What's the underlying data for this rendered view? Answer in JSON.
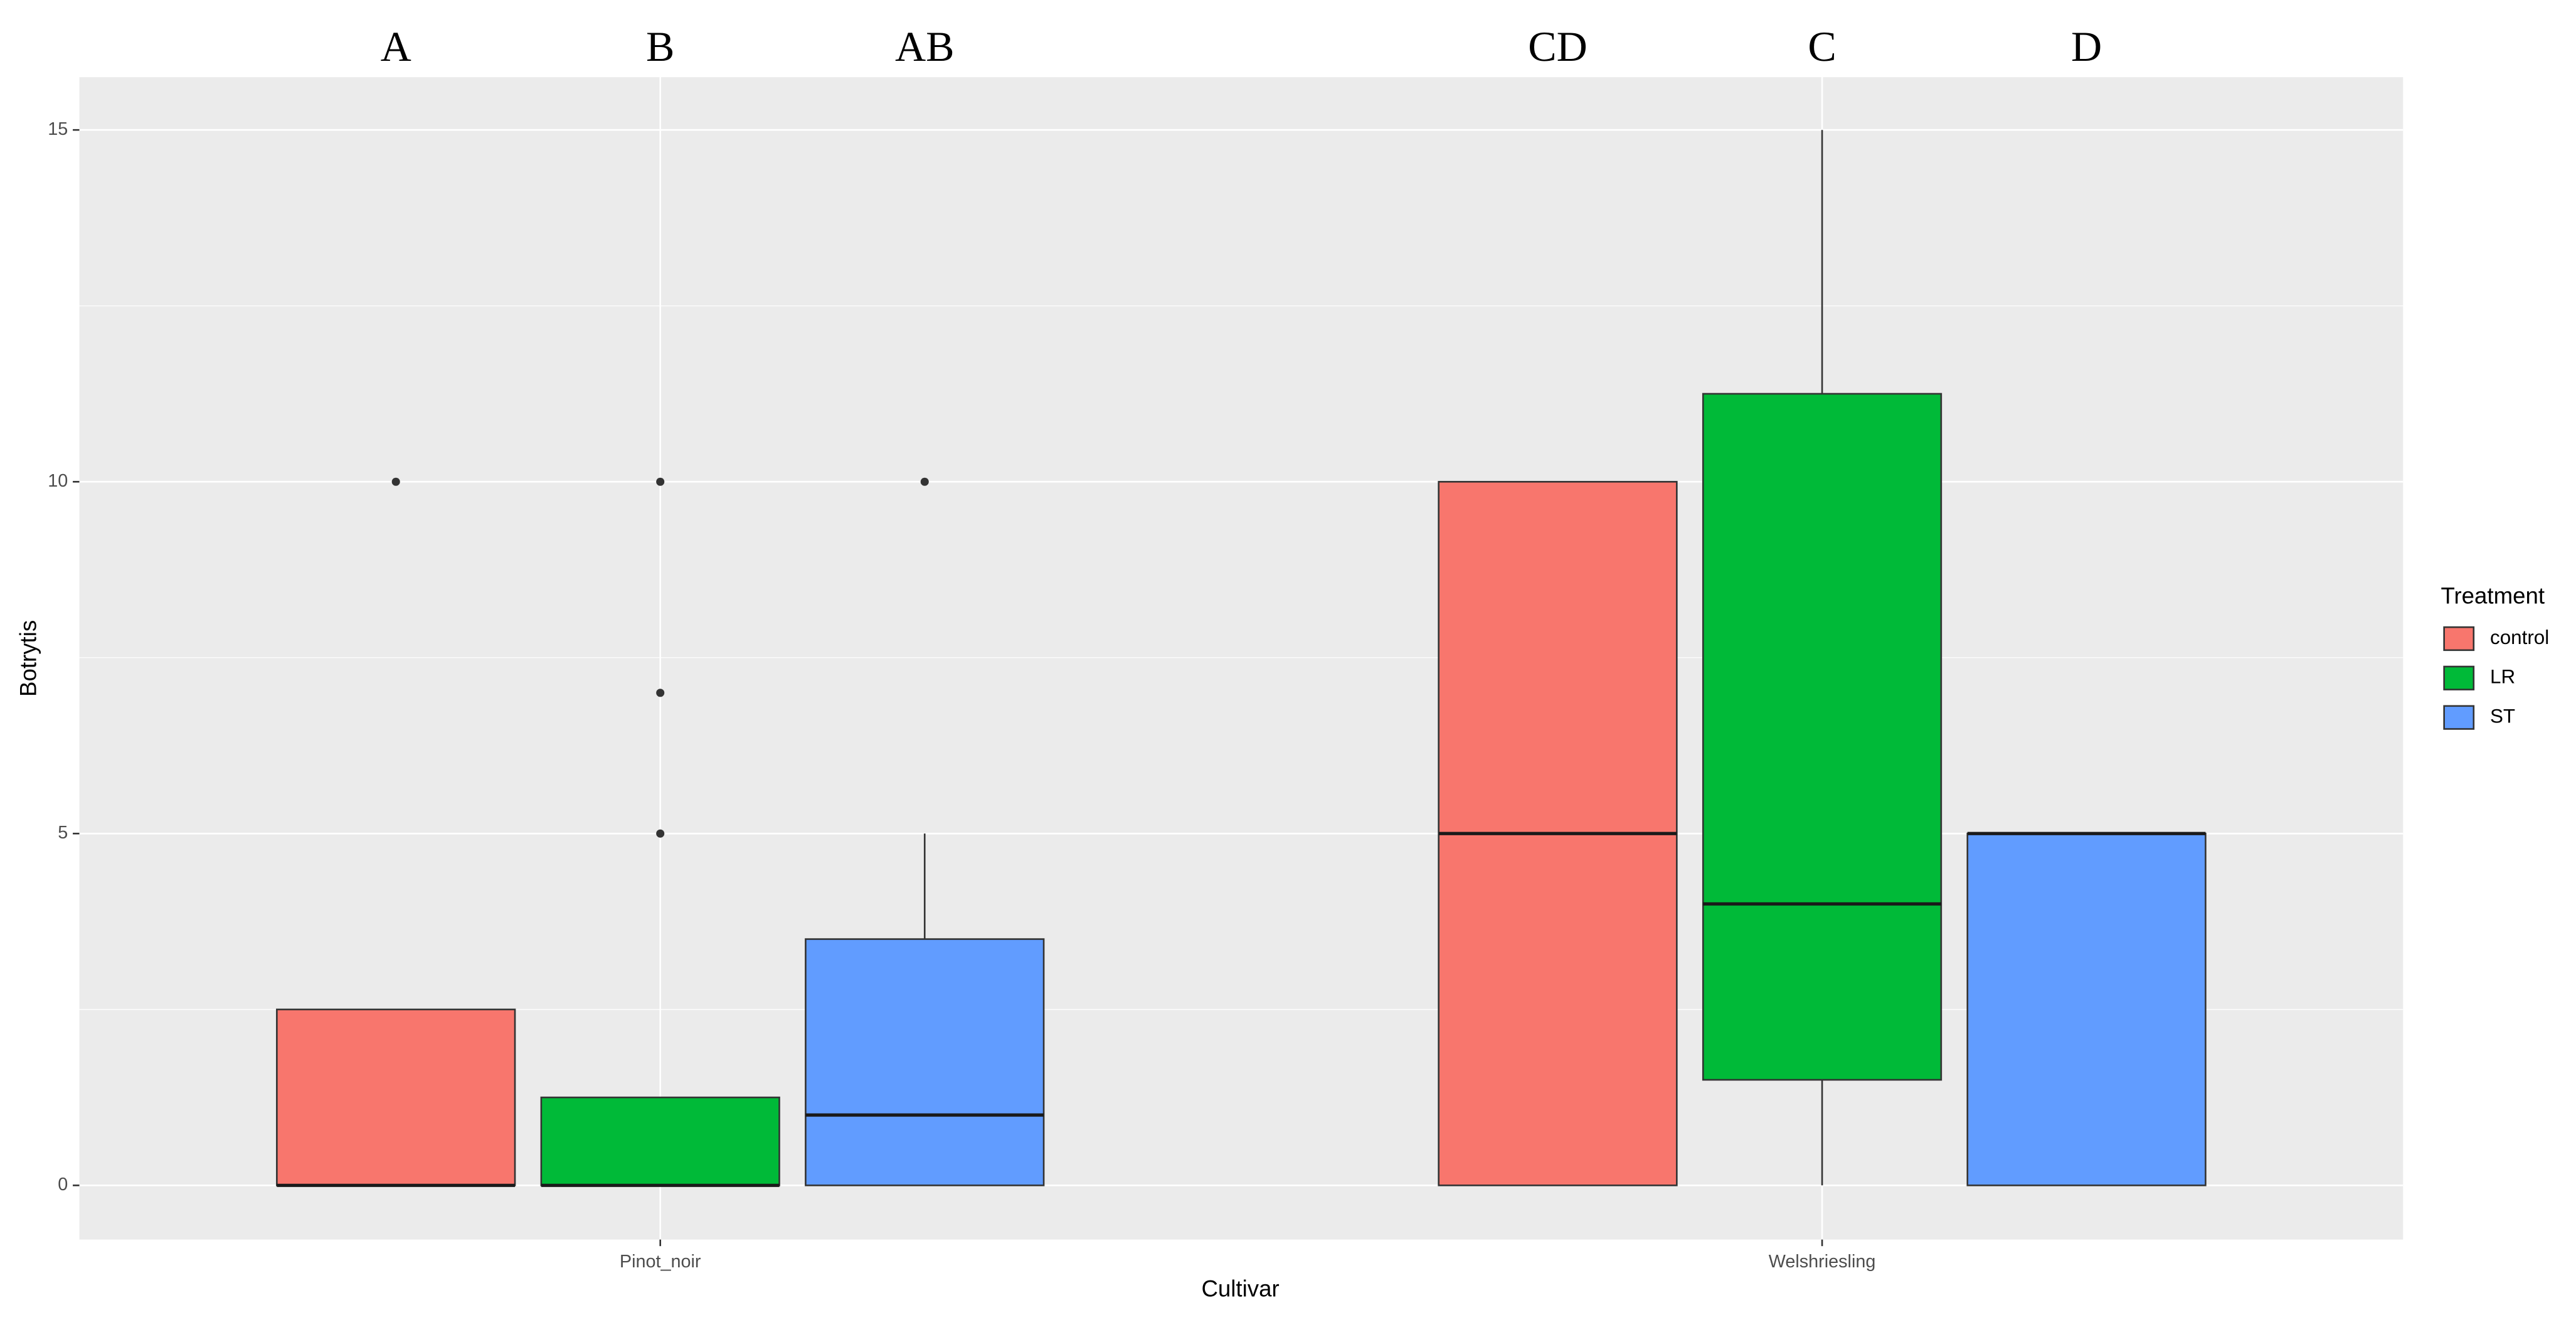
{
  "chart_data": {
    "type": "box",
    "x_label": "Cultivar",
    "y_label": "Botrytis",
    "categories": [
      "Pinot_noir",
      "Welshriesling"
    ],
    "ylim": [
      -0.77,
      15.75
    ],
    "yticks": [
      0,
      5,
      10,
      15
    ],
    "yminor": [
      2.5,
      7.5,
      12.5
    ],
    "grid": true,
    "legend_title": "Treatment",
    "legend": "right",
    "series": [
      {
        "name": "control",
        "color": "#f8766d",
        "letters": [
          "A",
          "CD"
        ],
        "values": [
          {
            "min": 0,
            "q1": 0,
            "median": 0,
            "q3": 2.5,
            "max": 2.5,
            "outliers": [
              10
            ]
          },
          {
            "min": 0,
            "q1": 0,
            "median": 5,
            "q3": 10,
            "max": 10,
            "outliers": []
          }
        ]
      },
      {
        "name": "LR",
        "color": "#00ba38",
        "letters": [
          "B",
          "C"
        ],
        "values": [
          {
            "min": 0,
            "q1": 0,
            "median": 0,
            "q3": 1.25,
            "max": 1.25,
            "outliers": [
              10,
              7,
              5
            ]
          },
          {
            "min": 0,
            "q1": 1.5,
            "median": 4,
            "q3": 11.25,
            "max": 15,
            "outliers": []
          }
        ]
      },
      {
        "name": "ST",
        "color": "#619cff",
        "letters": [
          "AB",
          "D"
        ],
        "values": [
          {
            "min": 0,
            "q1": 0,
            "median": 1,
            "q3": 3.5,
            "max": 5,
            "outliers": [
              10
            ]
          },
          {
            "min": 0,
            "q1": 0,
            "median": 5,
            "q3": 5,
            "max": 5,
            "outliers": []
          }
        ]
      }
    ]
  }
}
